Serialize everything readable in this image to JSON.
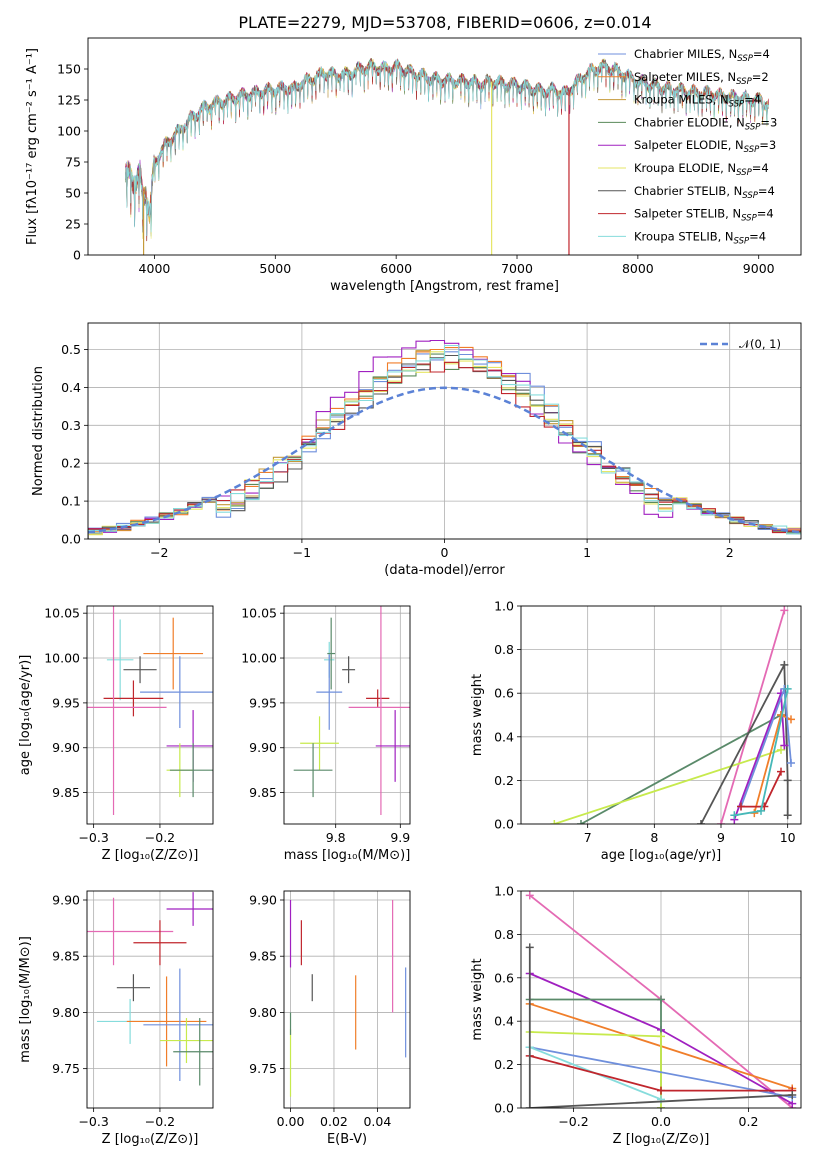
{
  "figure": {
    "title": "PLATE=2279, MJD=53708, FIBERID=0606, z=0.014"
  },
  "colors": {
    "Chabrier MILES": "#6f8fdc",
    "Salpeter MILES": "#f07e2a",
    "Kroupa MILES": "#c59a3a",
    "Chabrier ELODIE": "#5a8a5a",
    "Salpeter ELODIE": "#a020c0",
    "Kroupa ELODIE": "#e6e666",
    "Chabrier STELIB": "#555555",
    "Salpeter STELIB": "#c0262d",
    "Kroupa STELIB": "#86dcdc",
    "Pink": "#e46ab4",
    "Teal": "#46b8b8",
    "LimeGreen": "#c7ea4d",
    "DarkGreen": "#5a8a6a",
    "Normal": "#5b82d6"
  },
  "chart_data": [
    {
      "id": "spectrum",
      "type": "line",
      "title": "PLATE=2279, MJD=53708, FIBERID=0606, z=0.014",
      "xlabel": "wavelength [Angstrom, rest frame]",
      "ylabel": "Flux [fλ10⁻¹⁷ erg cm⁻² s⁻¹ A⁻¹]",
      "xlim": [
        3450,
        9350
      ],
      "ylim": [
        0,
        175
      ],
      "xticks": [
        4000,
        5000,
        6000,
        7000,
        8000,
        9000
      ],
      "yticks": [
        0,
        25,
        50,
        75,
        100,
        125,
        150
      ],
      "grid": false,
      "legend_position": "top-right",
      "legend": [
        {
          "label": "Chabrier MILES, N",
          "sub": "SSP",
          "suffix": "=4"
        },
        {
          "label": "Salpeter MILES, N",
          "sub": "SSP",
          "suffix": "=2"
        },
        {
          "label": "Kroupa MILES, N",
          "sub": "SSP",
          "suffix": "=4"
        },
        {
          "label": "Chabrier ELODIE, N",
          "sub": "SSP",
          "suffix": "=3"
        },
        {
          "label": "Salpeter ELODIE, N",
          "sub": "SSP",
          "suffix": "=3"
        },
        {
          "label": "Kroupa ELODIE, N",
          "sub": "SSP",
          "suffix": "=4"
        },
        {
          "label": "Chabrier STELIB, N",
          "sub": "SSP",
          "suffix": "=4"
        },
        {
          "label": "Salpeter STELIB, N",
          "sub": "SSP",
          "suffix": "=4"
        },
        {
          "label": "Kroupa STELIB, N",
          "sub": "SSP",
          "suffix": "=4"
        }
      ],
      "envelope": {
        "x": [
          3760,
          3800,
          3850,
          3880,
          3900,
          3930,
          3960,
          4000,
          4100,
          4200,
          4300,
          4400,
          4500,
          4600,
          4700,
          4800,
          4900,
          5000,
          5100,
          5150,
          5200,
          5300,
          5400,
          5500,
          5600,
          5700,
          5800,
          5900,
          6000,
          6100,
          6200,
          6300,
          6400,
          6500,
          6600,
          6700,
          6800,
          6900,
          7000,
          7100,
          7200,
          7300,
          7400,
          7500,
          7600,
          7700,
          7800,
          7900,
          8000,
          8200,
          8400,
          8600,
          8800,
          9000,
          9080
        ],
        "y": [
          60,
          70,
          55,
          65,
          50,
          55,
          30,
          75,
          90,
          100,
          110,
          118,
          122,
          125,
          128,
          130,
          132,
          133,
          135,
          133,
          138,
          142,
          147,
          145,
          146,
          150,
          152,
          150,
          152,
          148,
          145,
          142,
          141,
          140,
          140,
          138,
          140,
          138,
          137,
          135,
          132,
          133,
          130,
          140,
          148,
          152,
          150,
          145,
          140,
          135,
          132,
          130,
          127,
          125,
          122
        ]
      },
      "dropouts": [
        {
          "x": 3910,
          "color_key": "Kroupa MILES"
        },
        {
          "x": 6790,
          "color_key": "Kroupa ELODIE"
        },
        {
          "x": 7430,
          "color_key": "Salpeter STELIB"
        }
      ]
    },
    {
      "id": "residuals",
      "type": "histogram",
      "xlabel": "(data-model)/error",
      "ylabel": "Normed distribution",
      "xlim": [
        -2.5,
        2.5
      ],
      "ylim": [
        0,
        0.57
      ],
      "xticks": [
        -2,
        -1,
        0,
        1,
        2
      ],
      "yticks": [
        0.0,
        0.1,
        0.2,
        0.3,
        0.4,
        0.5
      ],
      "grid": true,
      "legend_position": "top-right",
      "legend": [
        {
          "label": "𝒩(0, 1)",
          "color_key": "Normal",
          "style": "dashed"
        }
      ],
      "bin_width": 0.1,
      "bin_start": -2.5,
      "series": [
        {
          "name": "Chabrier MILES",
          "color_key": "Chabrier MILES",
          "peak": 0.5,
          "center": 0.05,
          "sigma": 0.82,
          "seed": 3
        },
        {
          "name": "Salpeter MILES",
          "color_key": "Salpeter MILES",
          "peak": 0.49,
          "center": 0.02,
          "sigma": 0.84,
          "seed": 5
        },
        {
          "name": "Kroupa MILES",
          "color_key": "Kroupa MILES",
          "peak": 0.48,
          "center": 0.0,
          "sigma": 0.85,
          "seed": 7
        },
        {
          "name": "Chabrier ELODIE",
          "color_key": "Chabrier ELODIE",
          "peak": 0.47,
          "center": -0.02,
          "sigma": 0.83,
          "seed": 11
        },
        {
          "name": "Salpeter ELODIE",
          "color_key": "Salpeter ELODIE",
          "peak": 0.52,
          "center": -0.05,
          "sigma": 0.8,
          "seed": 13
        },
        {
          "name": "Kroupa ELODIE",
          "color_key": "Kroupa ELODIE",
          "peak": 0.47,
          "center": 0.0,
          "sigma": 0.86,
          "seed": 17
        },
        {
          "name": "Chabrier STELIB",
          "color_key": "Chabrier STELIB",
          "peak": 0.47,
          "center": 0.03,
          "sigma": 0.84,
          "seed": 19
        },
        {
          "name": "Salpeter STELIB",
          "color_key": "Salpeter STELIB",
          "peak": 0.46,
          "center": 0.0,
          "sigma": 0.85,
          "seed": 23
        },
        {
          "name": "Kroupa STELIB",
          "color_key": "Kroupa STELIB",
          "peak": 0.49,
          "center": 0.02,
          "sigma": 0.83,
          "seed": 29
        }
      ],
      "normal_curve": {
        "mu": 0,
        "sigma": 1
      }
    },
    {
      "id": "age-vs-Z",
      "type": "errorbar",
      "xlabel": "Z [log₁₀(Z/Z⊙)]",
      "ylabel": "age  [log₁₀(age/yr)]",
      "xlim": [
        -0.31,
        -0.12
      ],
      "ylim": [
        9.815,
        10.058
      ],
      "xticks": [
        -0.3,
        -0.2
      ],
      "xticklabels": [
        "−0.3",
        "−0.2"
      ],
      "yticks": [
        9.85,
        9.9,
        9.95,
        10.0,
        10.05
      ],
      "grid": true,
      "points": [
        {
          "color_key": "Kroupa STELIB",
          "x": -0.26,
          "xerr": 0.02,
          "y": 9.998,
          "yerr": 0.045
        },
        {
          "color_key": "Salpeter MILES",
          "x": -0.18,
          "xerr": 0.045,
          "y": 10.005,
          "yerr": 0.04
        },
        {
          "color_key": "Chabrier STELIB",
          "x": -0.23,
          "xerr": 0.025,
          "y": 9.987,
          "yerr": 0.015
        },
        {
          "color_key": "Chabrier MILES",
          "x": -0.17,
          "xerr": 0.06,
          "y": 9.962,
          "yerr": 0.04
        },
        {
          "color_key": "Salpeter STELIB",
          "x": -0.24,
          "xerr": 0.045,
          "y": 9.955,
          "yerr": 0.02
        },
        {
          "color_key": "Pink",
          "x": -0.27,
          "xerr": 0.08,
          "y": 9.945,
          "yerr": 0.12
        },
        {
          "color_key": "Salpeter ELODIE",
          "x": -0.15,
          "xerr": 0.04,
          "y": 9.902,
          "yerr": 0.04
        },
        {
          "color_key": "LimeGreen",
          "x": -0.17,
          "xerr": 0.02,
          "y": 9.875,
          "yerr": 0.03
        },
        {
          "color_key": "DarkGreen",
          "x": -0.15,
          "xerr": 0.035,
          "y": 9.875,
          "yerr": 0.03
        }
      ]
    },
    {
      "id": "age-vs-mass",
      "type": "errorbar",
      "xlabel": "mass [log₁₀(M/M⊙)]",
      "ylabel": "",
      "xlim": [
        0.72,
        0.915
      ],
      "ylim": [
        9.815,
        10.058
      ],
      "xticks": [
        0.8,
        0.9
      ],
      "xticklabels": [
        "9.8",
        "9.9"
      ],
      "yticks": [
        9.85,
        9.9,
        9.95,
        10.0,
        10.05
      ],
      "grid": true,
      "points": [
        {
          "color_key": "Kroupa STELIB",
          "x": 0.79,
          "xerr": 0.008,
          "y": 9.998,
          "yerr": 0.02
        },
        {
          "color_key": "DarkGreen",
          "x": 0.793,
          "xerr": 0.006,
          "y": 10.005,
          "yerr": 0.04
        },
        {
          "color_key": "Chabrier STELIB",
          "x": 0.82,
          "xerr": 0.01,
          "y": 9.987,
          "yerr": 0.015
        },
        {
          "color_key": "Chabrier MILES",
          "x": 0.79,
          "xerr": 0.02,
          "y": 9.962,
          "yerr": 0.042
        },
        {
          "color_key": "Salpeter STELIB",
          "x": 0.865,
          "xerr": 0.018,
          "y": 9.955,
          "yerr": 0.01
        },
        {
          "color_key": "Pink",
          "x": 0.87,
          "xerr": 0.05,
          "y": 9.945,
          "yerr": 0.12
        },
        {
          "color_key": "LimeGreen",
          "x": 0.775,
          "xerr": 0.03,
          "y": 9.905,
          "yerr": 0.03
        },
        {
          "color_key": "DarkGreen",
          "x": 0.765,
          "xerr": 0.03,
          "y": 9.875,
          "yerr": 0.03
        },
        {
          "color_key": "Salpeter ELODIE",
          "x": 0.892,
          "xerr": 0.03,
          "y": 9.902,
          "yerr": 0.04
        }
      ]
    },
    {
      "id": "weight-vs-age",
      "type": "line",
      "xlabel": "age  [log₁₀(age/yr)]",
      "ylabel": "mass weight",
      "xlim": [
        6.0,
        10.2
      ],
      "ylim": [
        0,
        1.0
      ],
      "xticks": [
        7,
        8,
        9,
        10
      ],
      "yticks": [
        0.0,
        0.2,
        0.4,
        0.6,
        0.8,
        1.0
      ],
      "grid": true,
      "series": [
        {
          "color_key": "Pink",
          "x": [
            9.0,
            9.95
          ],
          "y": [
            0.0,
            0.98
          ]
        },
        {
          "color_key": "DarkGreen",
          "x": [
            6.9,
            9.9
          ],
          "y": [
            0.0,
            0.5
          ]
        },
        {
          "color_key": "LimeGreen",
          "x": [
            6.5,
            9.9
          ],
          "y": [
            0.0,
            0.34
          ]
        },
        {
          "color_key": "Chabrier STELIB",
          "x": [
            8.7,
            9.95,
            10.0,
            10.0
          ],
          "y": [
            0.0,
            0.73,
            0.2,
            0.04
          ]
        },
        {
          "color_key": "Salpeter ELODIE",
          "x": [
            9.2,
            9.9,
            9.95
          ],
          "y": [
            0.02,
            0.6,
            0.36
          ]
        },
        {
          "color_key": "Salpeter MILES",
          "x": [
            9.5,
            9.9,
            10.05
          ],
          "y": [
            0.05,
            0.5,
            0.48
          ]
        },
        {
          "color_key": "Chabrier MILES",
          "x": [
            9.3,
            9.95,
            10.05
          ],
          "y": [
            0.08,
            0.62,
            0.28
          ]
        },
        {
          "color_key": "Salpeter STELIB",
          "x": [
            9.3,
            9.65,
            9.9
          ],
          "y": [
            0.08,
            0.08,
            0.24
          ]
        },
        {
          "color_key": "Teal",
          "x": [
            9.2,
            9.6,
            10.0
          ],
          "y": [
            0.04,
            0.06,
            0.62
          ]
        }
      ]
    },
    {
      "id": "mass-vs-Z",
      "type": "errorbar",
      "xlabel": "Z [log₁₀(Z/Z⊙)]",
      "ylabel": "mass [log₁₀(M/M⊙)]",
      "xlim": [
        -0.31,
        -0.12
      ],
      "ylim": [
        9.715,
        9.908
      ],
      "xticks": [
        -0.3,
        -0.2
      ],
      "xticklabels": [
        "−0.3",
        "−0.2"
      ],
      "yticks": [
        9.75,
        9.8,
        9.85,
        9.9
      ],
      "grid": true,
      "points": [
        {
          "color_key": "Pink",
          "x": -0.27,
          "xerr": 0.09,
          "y": 9.872,
          "yerr": 0.03
        },
        {
          "color_key": "Salpeter ELODIE",
          "x": -0.15,
          "xerr": 0.04,
          "y": 9.892,
          "yerr": 0.015
        },
        {
          "color_key": "Salpeter STELIB",
          "x": -0.2,
          "xerr": 0.04,
          "y": 9.862,
          "yerr": 0.02
        },
        {
          "color_key": "Chabrier STELIB",
          "x": -0.24,
          "xerr": 0.025,
          "y": 9.822,
          "yerr": 0.012
        },
        {
          "color_key": "Kroupa STELIB",
          "x": -0.245,
          "xerr": 0.05,
          "y": 9.792,
          "yerr": 0.02
        },
        {
          "color_key": "Salpeter MILES",
          "x": -0.19,
          "xerr": 0.06,
          "y": 9.792,
          "yerr": 0.04
        },
        {
          "color_key": "Chabrier MILES",
          "x": -0.17,
          "xerr": 0.055,
          "y": 9.789,
          "yerr": 0.05
        },
        {
          "color_key": "LimeGreen",
          "x": -0.16,
          "xerr": 0.04,
          "y": 9.775,
          "yerr": 0.02
        },
        {
          "color_key": "DarkGreen",
          "x": -0.14,
          "xerr": 0.04,
          "y": 9.765,
          "yerr": 0.03
        }
      ]
    },
    {
      "id": "mass-vs-ebv",
      "type": "errorbar",
      "xlabel": "E(B-V)",
      "ylabel": "",
      "xlim": [
        -0.003,
        0.055
      ],
      "ylim": [
        9.715,
        9.908
      ],
      "xticks": [
        0.0,
        0.02,
        0.04
      ],
      "xticklabels": [
        "0.00",
        "0.02",
        "0.04"
      ],
      "yticks": [
        9.75,
        9.8,
        9.85,
        9.9
      ],
      "grid": true,
      "points": [
        {
          "color_key": "Salpeter ELODIE",
          "x": 0.0,
          "xerr": 0.0,
          "y": 9.87,
          "yerr": 0.03
        },
        {
          "color_key": "Salpeter STELIB",
          "x": 0.005,
          "xerr": 0.0,
          "y": 9.862,
          "yerr": 0.02
        },
        {
          "color_key": "Chabrier STELIB",
          "x": 0.01,
          "xerr": 0.0,
          "y": 9.822,
          "yerr": 0.012
        },
        {
          "color_key": "LimeGreen",
          "x": 0.0,
          "xerr": 0.0,
          "y": 9.755,
          "yerr": 0.03
        },
        {
          "color_key": "DarkGreen",
          "x": 0.0,
          "xerr": 0.0,
          "y": 9.79,
          "yerr": 0.01
        },
        {
          "color_key": "Salpeter MILES",
          "x": 0.03,
          "xerr": 0.0,
          "y": 9.8,
          "yerr": 0.033
        },
        {
          "color_key": "Pink",
          "x": 0.047,
          "xerr": 0.0,
          "y": 9.85,
          "yerr": 0.05
        },
        {
          "color_key": "Chabrier MILES",
          "x": 0.053,
          "xerr": 0.0,
          "y": 9.8,
          "yerr": 0.04
        }
      ]
    },
    {
      "id": "weight-vs-Z",
      "type": "line",
      "xlabel": "Z [log₁₀(Z/Z⊙)]",
      "ylabel": "mass weight",
      "xlim": [
        -0.32,
        0.32
      ],
      "ylim": [
        0,
        1.0
      ],
      "xticks": [
        -0.2,
        0.0,
        0.2
      ],
      "xticklabels": [
        "−0.2",
        "0.0",
        "0.2"
      ],
      "yticks": [
        0.0,
        0.2,
        0.4,
        0.6,
        0.8,
        1.0
      ],
      "grid": true,
      "series": [
        {
          "color_key": "Pink",
          "x": [
            -0.3,
            0.0,
            0.3
          ],
          "y": [
            0.98,
            0.5,
            0.0
          ]
        },
        {
          "color_key": "Salpeter ELODIE",
          "x": [
            -0.3,
            0.0,
            0.3
          ],
          "y": [
            0.62,
            0.36,
            0.02
          ]
        },
        {
          "color_key": "DarkGreen",
          "x": [
            -0.3,
            0.0,
            0.0
          ],
          "y": [
            0.5,
            0.5,
            0.0
          ]
        },
        {
          "color_key": "Salpeter MILES",
          "x": [
            -0.3,
            0.3
          ],
          "y": [
            0.48,
            0.09
          ]
        },
        {
          "color_key": "LimeGreen",
          "x": [
            -0.3,
            0.0,
            0.0
          ],
          "y": [
            0.35,
            0.33,
            0.0
          ]
        },
        {
          "color_key": "Chabrier MILES",
          "x": [
            -0.3,
            0.3
          ],
          "y": [
            0.28,
            0.05
          ]
        },
        {
          "color_key": "Kroupa STELIB",
          "x": [
            -0.3,
            0.0
          ],
          "y": [
            0.28,
            0.04
          ]
        },
        {
          "color_key": "Salpeter STELIB",
          "x": [
            -0.3,
            0.0,
            0.3
          ],
          "y": [
            0.24,
            0.08,
            0.08
          ]
        },
        {
          "color_key": "Chabrier STELIB",
          "x": [
            -0.3,
            -0.3,
            0.3
          ],
          "y": [
            0.74,
            0.0,
            0.06
          ]
        }
      ]
    }
  ]
}
